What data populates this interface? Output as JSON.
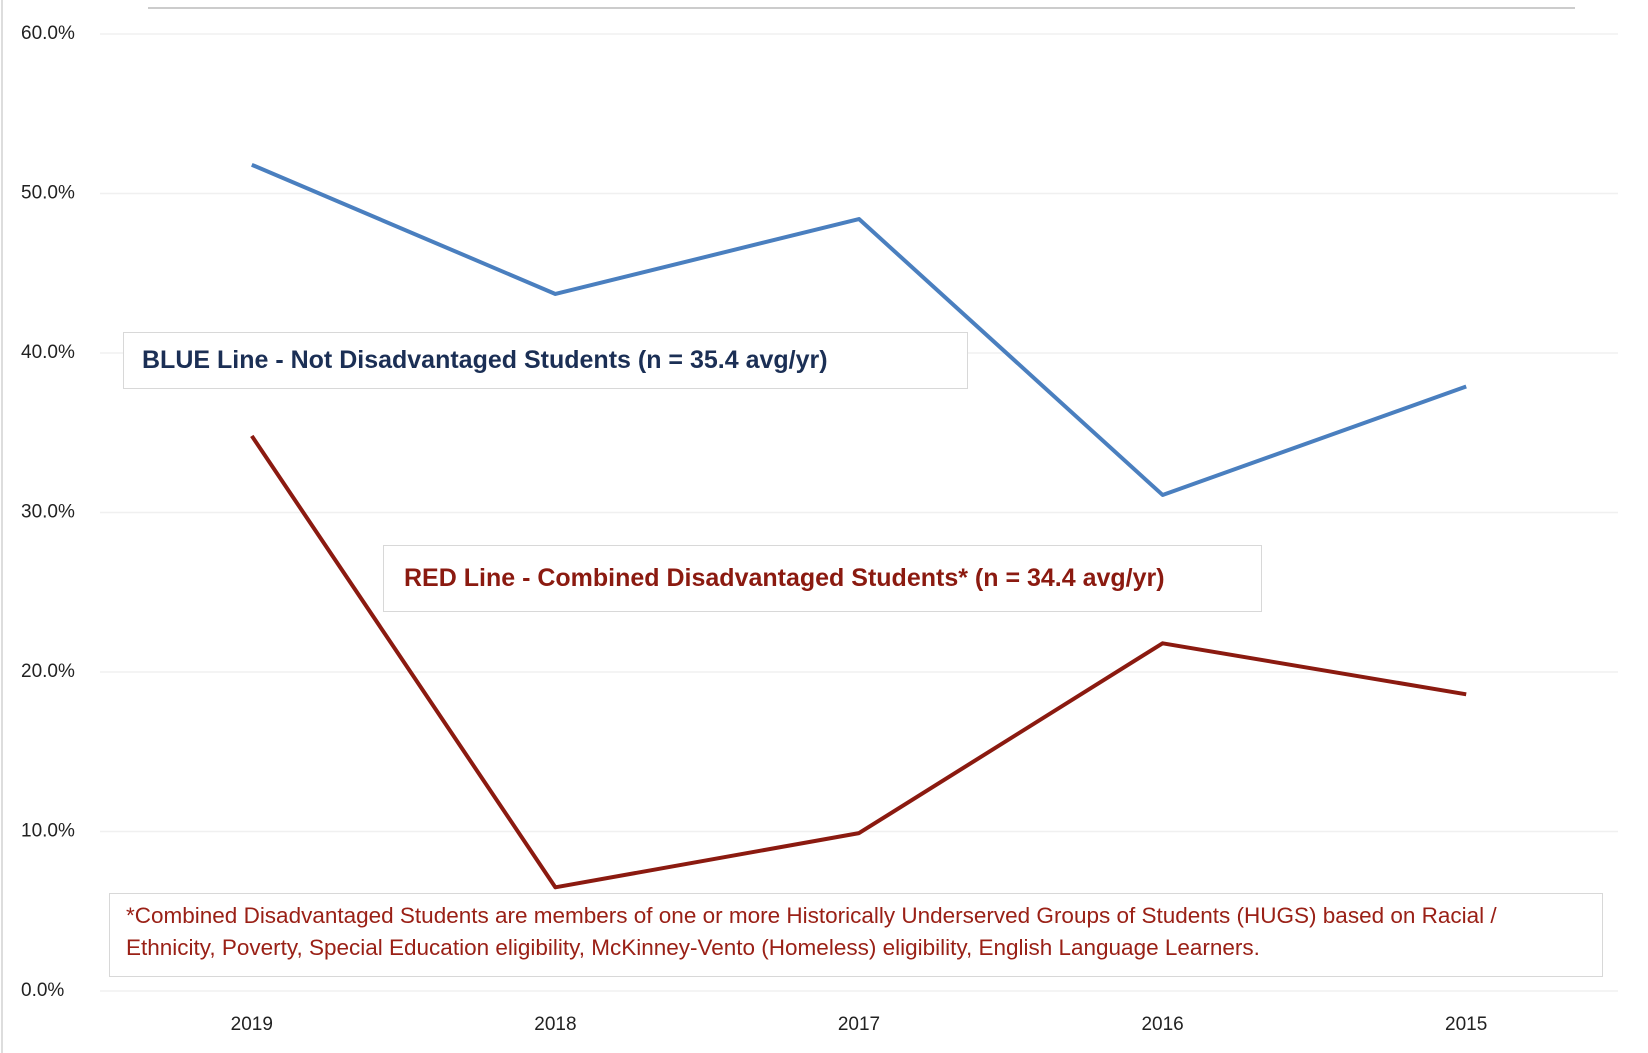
{
  "chart_data": {
    "type": "line",
    "categories": [
      "2019",
      "2018",
      "2017",
      "2016",
      "2015"
    ],
    "series": [
      {
        "name": "BLUE Line - Not Disadvantaged Students (n = 35.4  avg/yr)",
        "color": "#4a7fbf",
        "values": [
          51.8,
          43.7,
          48.4,
          31.1,
          37.9
        ]
      },
      {
        "name": "RED Line - Combined Disadvantaged Students* (n = 34.4  avg/yr)",
        "color": "#8b1a10",
        "values": [
          34.8,
          6.5,
          9.9,
          21.8,
          18.6
        ]
      }
    ],
    "ylim": [
      0,
      60
    ],
    "yticks": [
      {
        "value": 0,
        "label": "0.0%"
      },
      {
        "value": 10,
        "label": "10.0%"
      },
      {
        "value": 20,
        "label": "20.0%"
      },
      {
        "value": 30,
        "label": "30.0%"
      },
      {
        "value": 40,
        "label": "40.0%"
      },
      {
        "value": 50,
        "label": "50.0%"
      },
      {
        "value": 60,
        "label": "60.0%"
      }
    ],
    "grid": true,
    "footnote": "*Combined Disadvantaged Students are members of one or more Historically Underserved Groups of Students (HUGS) based on Racial / Ethnicity, Poverty, Special Education eligibility, McKinney-Vento (Homeless) eligibility, English Language Learners."
  }
}
